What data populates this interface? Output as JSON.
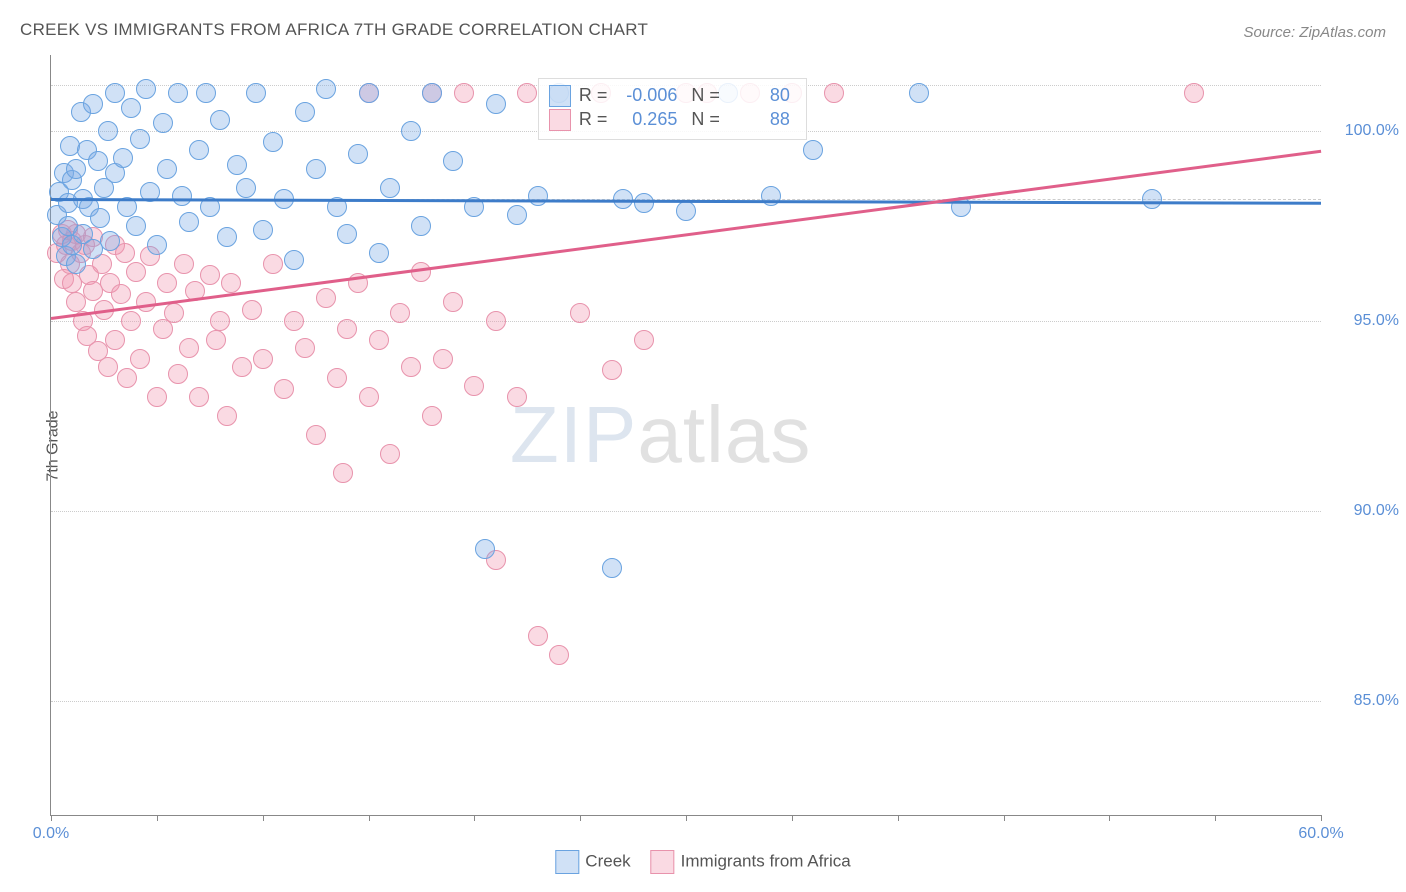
{
  "title": "CREEK VS IMMIGRANTS FROM AFRICA 7TH GRADE CORRELATION CHART",
  "source": "Source: ZipAtlas.com",
  "ylabel": "7th Grade",
  "watermark_zip": "ZIP",
  "watermark_atlas": "atlas",
  "chart": {
    "type": "scatter",
    "background_color": "#ffffff",
    "grid_color": "#cccccc",
    "axis_color": "#888888",
    "text_color": "#555555",
    "value_color": "#5b8fd6",
    "xlim": [
      0,
      60
    ],
    "ylim": [
      82,
      102
    ],
    "xtick_positions": [
      0,
      5,
      10,
      15,
      20,
      25,
      30,
      35,
      40,
      45,
      50,
      55,
      60
    ],
    "xtick_labels": {
      "0": "0.0%",
      "60": "60.0%"
    },
    "ytick_positions": [
      85,
      90,
      95,
      100
    ],
    "ytick_labels": {
      "85": "85.0%",
      "90": "90.0%",
      "95": "95.0%",
      "100": "100.0%"
    },
    "dashed_ref_y": 98.2,
    "gridline_y_extra": 101.2,
    "point_radius": 10,
    "point_border_width": 1.5,
    "trend_line_width": 2.5,
    "title_fontsize": 17,
    "label_fontsize": 16,
    "tick_fontsize": 16,
    "watermark_fontsize": 80,
    "series": {
      "creek": {
        "label": "Creek",
        "fill": "rgba(120,170,230,0.35)",
        "stroke": "#6aa3e0",
        "trend_color": "#3d7cc9",
        "R": "-0.006",
        "N": "80",
        "trend": {
          "x1": 0,
          "y1": 98.25,
          "x2": 60,
          "y2": 98.15
        },
        "points": [
          [
            0.3,
            97.8
          ],
          [
            0.4,
            98.4
          ],
          [
            0.5,
            97.2
          ],
          [
            0.6,
            98.9
          ],
          [
            0.7,
            96.7
          ],
          [
            0.8,
            97.5
          ],
          [
            0.8,
            98.1
          ],
          [
            0.9,
            99.6
          ],
          [
            1.0,
            98.7
          ],
          [
            1.0,
            97.0
          ],
          [
            1.2,
            99.0
          ],
          [
            1.2,
            96.5
          ],
          [
            1.4,
            100.5
          ],
          [
            1.5,
            98.2
          ],
          [
            1.5,
            97.3
          ],
          [
            1.7,
            99.5
          ],
          [
            1.8,
            98.0
          ],
          [
            2.0,
            100.7
          ],
          [
            2.0,
            96.9
          ],
          [
            2.2,
            99.2
          ],
          [
            2.3,
            97.7
          ],
          [
            2.5,
            98.5
          ],
          [
            2.7,
            100.0
          ],
          [
            2.8,
            97.1
          ],
          [
            3.0,
            98.9
          ],
          [
            3.0,
            101.0
          ],
          [
            3.4,
            99.3
          ],
          [
            3.6,
            98.0
          ],
          [
            3.8,
            100.6
          ],
          [
            4.0,
            97.5
          ],
          [
            4.2,
            99.8
          ],
          [
            4.5,
            101.1
          ],
          [
            4.7,
            98.4
          ],
          [
            5.0,
            97.0
          ],
          [
            5.3,
            100.2
          ],
          [
            5.5,
            99.0
          ],
          [
            6.0,
            101.0
          ],
          [
            6.2,
            98.3
          ],
          [
            6.5,
            97.6
          ],
          [
            7.0,
            99.5
          ],
          [
            7.3,
            101.0
          ],
          [
            7.5,
            98.0
          ],
          [
            8.0,
            100.3
          ],
          [
            8.3,
            97.2
          ],
          [
            8.8,
            99.1
          ],
          [
            9.2,
            98.5
          ],
          [
            9.7,
            101.0
          ],
          [
            10.0,
            97.4
          ],
          [
            10.5,
            99.7
          ],
          [
            11.0,
            98.2
          ],
          [
            11.5,
            96.6
          ],
          [
            12.0,
            100.5
          ],
          [
            12.5,
            99.0
          ],
          [
            13.0,
            101.1
          ],
          [
            13.5,
            98.0
          ],
          [
            14.0,
            97.3
          ],
          [
            14.5,
            99.4
          ],
          [
            15.0,
            101.0
          ],
          [
            15.5,
            96.8
          ],
          [
            16.0,
            98.5
          ],
          [
            17.0,
            100.0
          ],
          [
            17.5,
            97.5
          ],
          [
            18.0,
            101.0
          ],
          [
            19.0,
            99.2
          ],
          [
            20.0,
            98.0
          ],
          [
            20.5,
            89.0
          ],
          [
            21.0,
            100.7
          ],
          [
            22.0,
            97.8
          ],
          [
            23.0,
            98.3
          ],
          [
            24.0,
            101.0
          ],
          [
            26.5,
            88.5
          ],
          [
            27.0,
            98.2
          ],
          [
            28.0,
            98.1
          ],
          [
            30.0,
            97.9
          ],
          [
            32.0,
            101.0
          ],
          [
            34.0,
            98.3
          ],
          [
            36.0,
            99.5
          ],
          [
            41.0,
            101.0
          ],
          [
            43.0,
            98.0
          ],
          [
            52.0,
            98.2
          ]
        ]
      },
      "africa": {
        "label": "Immigrants from Africa",
        "fill": "rgba(240,150,175,0.35)",
        "stroke": "#e893ac",
        "trend_color": "#e05f8a",
        "R": "0.265",
        "N": "88",
        "trend": {
          "x1": 0,
          "y1": 95.1,
          "x2": 60,
          "y2": 99.5
        },
        "points": [
          [
            0.3,
            96.8
          ],
          [
            0.5,
            97.3
          ],
          [
            0.6,
            96.1
          ],
          [
            0.7,
            97.0
          ],
          [
            0.8,
            97.4
          ],
          [
            0.9,
            96.5
          ],
          [
            1.0,
            97.1
          ],
          [
            1.0,
            96.0
          ],
          [
            1.2,
            97.3
          ],
          [
            1.2,
            95.5
          ],
          [
            1.4,
            96.8
          ],
          [
            1.5,
            95.0
          ],
          [
            1.6,
            97.0
          ],
          [
            1.7,
            94.6
          ],
          [
            1.8,
            96.2
          ],
          [
            2.0,
            95.8
          ],
          [
            2.0,
            97.2
          ],
          [
            2.2,
            94.2
          ],
          [
            2.4,
            96.5
          ],
          [
            2.5,
            95.3
          ],
          [
            2.7,
            93.8
          ],
          [
            2.8,
            96.0
          ],
          [
            3.0,
            97.0
          ],
          [
            3.0,
            94.5
          ],
          [
            3.3,
            95.7
          ],
          [
            3.5,
            96.8
          ],
          [
            3.6,
            93.5
          ],
          [
            3.8,
            95.0
          ],
          [
            4.0,
            96.3
          ],
          [
            4.2,
            94.0
          ],
          [
            4.5,
            95.5
          ],
          [
            4.7,
            96.7
          ],
          [
            5.0,
            93.0
          ],
          [
            5.3,
            94.8
          ],
          [
            5.5,
            96.0
          ],
          [
            5.8,
            95.2
          ],
          [
            6.0,
            93.6
          ],
          [
            6.3,
            96.5
          ],
          [
            6.5,
            94.3
          ],
          [
            6.8,
            95.8
          ],
          [
            7.0,
            93.0
          ],
          [
            7.5,
            96.2
          ],
          [
            7.8,
            94.5
          ],
          [
            8.0,
            95.0
          ],
          [
            8.3,
            92.5
          ],
          [
            8.5,
            96.0
          ],
          [
            9.0,
            93.8
          ],
          [
            9.5,
            95.3
          ],
          [
            10.0,
            94.0
          ],
          [
            10.5,
            96.5
          ],
          [
            11.0,
            93.2
          ],
          [
            11.5,
            95.0
          ],
          [
            12.0,
            94.3
          ],
          [
            12.5,
            92.0
          ],
          [
            13.0,
            95.6
          ],
          [
            13.5,
            93.5
          ],
          [
            13.8,
            91.0
          ],
          [
            14.0,
            94.8
          ],
          [
            14.5,
            96.0
          ],
          [
            15.0,
            93.0
          ],
          [
            15.0,
            101.0
          ],
          [
            15.5,
            94.5
          ],
          [
            16.0,
            91.5
          ],
          [
            16.5,
            95.2
          ],
          [
            17.0,
            93.8
          ],
          [
            17.5,
            96.3
          ],
          [
            18.0,
            92.5
          ],
          [
            18.0,
            101.0
          ],
          [
            18.5,
            94.0
          ],
          [
            19.0,
            95.5
          ],
          [
            19.5,
            101.0
          ],
          [
            20.0,
            93.3
          ],
          [
            21.0,
            95.0
          ],
          [
            21.0,
            88.7
          ],
          [
            22.0,
            93.0
          ],
          [
            22.5,
            101.0
          ],
          [
            23.0,
            86.7
          ],
          [
            24.0,
            86.2
          ],
          [
            25.0,
            95.2
          ],
          [
            26.0,
            101.0
          ],
          [
            26.5,
            93.7
          ],
          [
            28.0,
            94.5
          ],
          [
            30.0,
            101.0
          ],
          [
            31.0,
            101.0
          ],
          [
            33.0,
            101.0
          ],
          [
            35.0,
            101.0
          ],
          [
            37.0,
            101.0
          ],
          [
            54.0,
            101.0
          ]
        ]
      }
    }
  },
  "legend_top": {
    "r_label": "R =",
    "n_label": "N ="
  },
  "legend_bottom": {
    "items": [
      "creek",
      "africa"
    ]
  }
}
